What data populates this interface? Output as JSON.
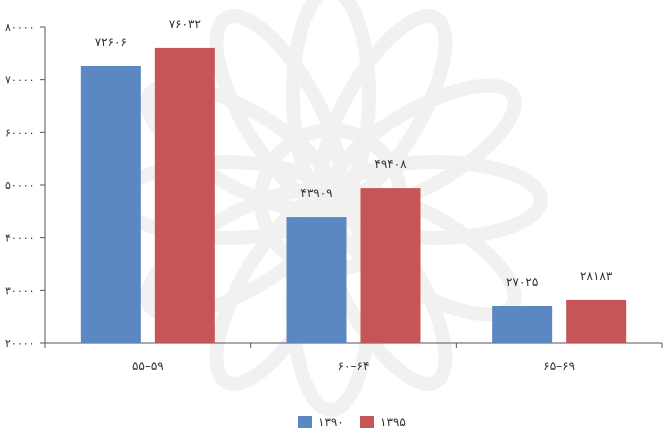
{
  "chart_data": {
    "type": "bar",
    "categories": [
      "۵۵–۵۹",
      "۶۰–۶۴",
      "۶۵–۶۹"
    ],
    "series": [
      {
        "name": "۱۳۹۰",
        "color": "#5b87c3",
        "values": [
          72606,
          43909,
          27025
        ],
        "labels": [
          "۷۲۶۰۶",
          "۴۳۹۰۹",
          "۲۷۰۲۵"
        ]
      },
      {
        "name": "۱۳۹۵",
        "color": "#c65557",
        "values": [
          76032,
          49408,
          28183
        ],
        "labels": [
          "۷۶۰۳۲",
          "۴۹۴۰۸",
          "۲۸۱۸۳"
        ]
      }
    ],
    "ylim": [
      20000,
      80000
    ],
    "yticks": [
      20000,
      30000,
      40000,
      50000,
      60000,
      70000,
      80000
    ],
    "ytick_labels": [
      "۲۰۰۰۰",
      "۳۰۰۰۰",
      "۴۰۰۰۰",
      "۵۰۰۰۰",
      "۶۰۰۰۰",
      "۷۰۰۰۰",
      "۸۰۰۰۰"
    ],
    "title": "",
    "xlabel": "",
    "ylabel": "",
    "grid": false,
    "legend_position": "bottom-center"
  }
}
